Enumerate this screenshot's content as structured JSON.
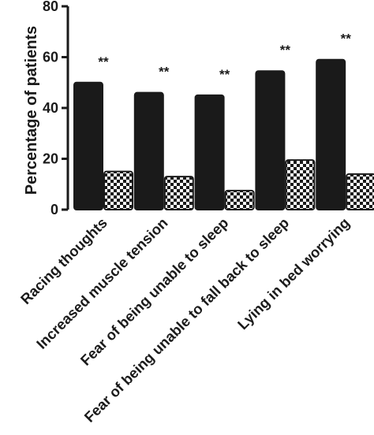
{
  "chart_data": {
    "type": "bar",
    "title": "",
    "xlabel": "",
    "ylabel": "Percentage of patients",
    "ylim": [
      0,
      80
    ],
    "yticks": [
      0,
      20,
      40,
      60,
      80
    ],
    "categories": [
      "Racing thoughts",
      "Increased muscle tension",
      "Fear of being unable to sleep",
      "Fear of being unable to fall back to sleep",
      "Lying in bed worrying"
    ],
    "series": [
      {
        "values": [
          50,
          46,
          45,
          54.5,
          59
        ],
        "color": "#1a1a1a",
        "pattern": "solid"
      },
      {
        "values": [
          15,
          13,
          7.5,
          19.5,
          14
        ],
        "color": "#1a1a1a",
        "pattern": "checkerboard"
      }
    ],
    "annotations": [
      "**",
      "**",
      "**",
      "**",
      "**"
    ],
    "grid": false,
    "legend": "none"
  }
}
